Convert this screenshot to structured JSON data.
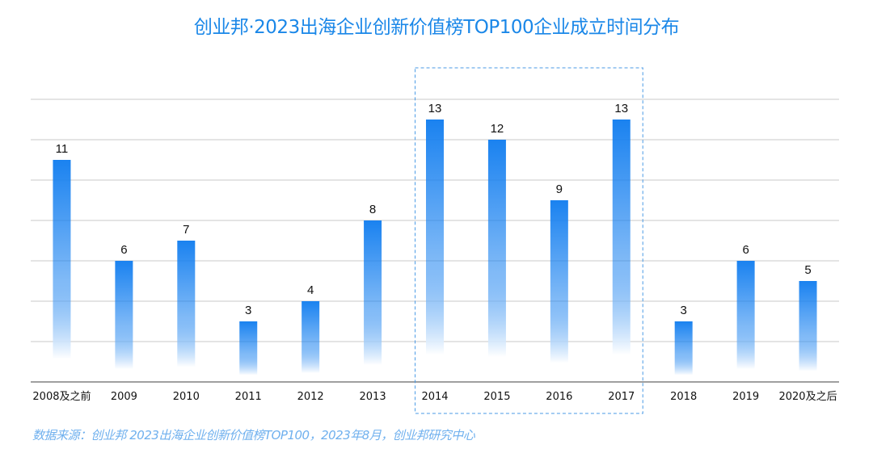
{
  "chart_data": {
    "type": "bar",
    "title": "创业邦·2023出海企业创新价值榜TOP100企业成立时间分布",
    "categories": [
      "2008及之前",
      "2009",
      "2010",
      "2011",
      "2012",
      "2013",
      "2014",
      "2015",
      "2016",
      "2017",
      "2018",
      "2019",
      "2020及之后"
    ],
    "values": [
      11,
      6,
      7,
      3,
      4,
      8,
      13,
      12,
      9,
      13,
      3,
      6,
      5
    ],
    "xlabel": "",
    "ylabel": "",
    "ylim": [
      0,
      14
    ],
    "grid": true,
    "y_tick_labels_shown": false,
    "highlighted_categories": [
      "2014",
      "2015",
      "2016",
      "2017"
    ],
    "bar_color": "#1a82f0",
    "highlight_box_color": "#4a9ae6",
    "source": "数据来源：创业邦 2023出海企业创新价值榜TOP100，2023年8月，创业邦研究中心"
  }
}
